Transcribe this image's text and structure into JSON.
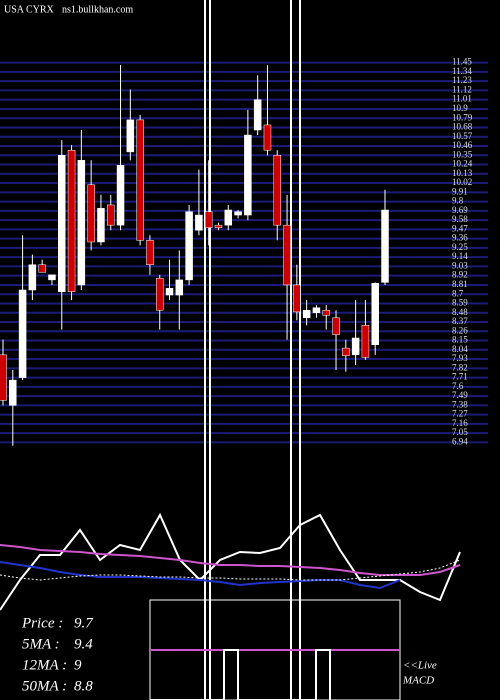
{
  "site": {
    "symbol": "USA CYRX",
    "source": "ns1.bullkhan.com"
  },
  "chart_data": [
    {
      "type": "candlestick",
      "open": [
        7.98,
        7.38,
        7.71,
        8.75,
        9.05,
        8.87,
        8.73,
        10.41,
        8.81,
        10.0,
        9.32,
        9.76,
        9.52,
        10.39,
        10.77,
        9.34,
        8.89,
        8.69,
        8.69,
        8.87,
        9.46,
        9.68,
        9.52,
        9.52,
        9.64,
        9.64,
        10.65,
        10.71,
        10.35,
        9.52,
        8.81,
        8.42,
        8.48,
        8.51,
        8.42,
        8.06,
        7.98,
        8.33,
        8.1,
        8.84
      ],
      "high": [
        8.16,
        7.8,
        9.4,
        9.17,
        9.11,
        8.93,
        10.53,
        10.47,
        10.65,
        10.29,
        9.88,
        9.88,
        11.42,
        11.13,
        10.83,
        9.4,
        8.93,
        9.11,
        9.22,
        9.76,
        10.18,
        10.29,
        9.55,
        9.76,
        9.7,
        10.89,
        11.3,
        11.42,
        10.41,
        9.88,
        9.05,
        8.63,
        8.57,
        8.57,
        8.51,
        8.16,
        8.63,
        8.63,
        8.84,
        9.94
      ],
      "low": [
        7.38,
        6.9,
        7.68,
        8.63,
        8.96,
        8.81,
        8.28,
        8.63,
        8.75,
        9.22,
        9.28,
        9.46,
        9.46,
        10.29,
        9.28,
        8.93,
        8.28,
        8.63,
        8.28,
        8.81,
        9.4,
        9.28,
        9.46,
        9.46,
        9.6,
        9.58,
        10.59,
        10.35,
        9.34,
        8.16,
        8.39,
        8.33,
        8.42,
        8.28,
        7.8,
        7.78,
        7.86,
        7.92,
        7.98,
        8.81
      ],
      "close": [
        7.44,
        7.68,
        8.75,
        9.05,
        8.96,
        8.93,
        10.35,
        8.73,
        10.29,
        9.32,
        9.72,
        9.52,
        10.23,
        10.77,
        9.34,
        9.05,
        8.51,
        8.77,
        8.87,
        9.68,
        9.64,
        9.49,
        9.49,
        9.7,
        9.68,
        10.59,
        11.01,
        10.41,
        9.52,
        8.81,
        8.49,
        8.51,
        8.54,
        8.45,
        8.22,
        7.97,
        8.18,
        7.95,
        8.83,
        9.7
      ],
      "colors": {
        "up": "#ffffff",
        "down": "#cc0000"
      },
      "ylim": [
        6.85,
        11.6
      ],
      "yticks": [
        11.45,
        11.34,
        11.23,
        11.12,
        11.01,
        10.9,
        10.79,
        10.68,
        10.57,
        10.46,
        10.35,
        10.24,
        10.13,
        10.02,
        9.91,
        9.8,
        9.69,
        9.58,
        9.47,
        9.36,
        9.25,
        9.14,
        9.03,
        8.92,
        8.81,
        8.7,
        8.59,
        8.48,
        8.37,
        8.26,
        8.15,
        8.04,
        7.93,
        7.82,
        7.71,
        7.6,
        7.49,
        7.38,
        7.27,
        7.16,
        7.05,
        6.94
      ],
      "grid": true,
      "grid_color": "#1c1c78"
    },
    {
      "type": "line",
      "x": [
        0,
        20,
        40,
        60,
        80,
        100,
        120,
        140,
        160,
        180,
        200,
        220,
        240,
        260,
        280,
        300,
        320,
        340,
        360,
        380,
        400,
        420,
        440,
        460
      ],
      "xlim": [
        0,
        500
      ],
      "ylim": [
        0,
        100
      ],
      "series": [
        {
          "color": "#ffffff",
          "style": "solid",
          "values": [
            0,
            30,
            55,
            55,
            80,
            50,
            65,
            60,
            95,
            50,
            30,
            50,
            58,
            57,
            62,
            85,
            95,
            60,
            30,
            30,
            30,
            18,
            10,
            58
          ]
        },
        {
          "color": "#cc55cc",
          "style": "solid",
          "values": [
            65,
            63,
            60,
            59,
            58,
            56,
            55,
            54,
            52,
            50,
            47,
            45,
            45,
            44,
            44,
            43,
            42,
            40,
            37,
            35,
            35,
            35,
            38,
            45
          ]
        },
        {
          "color": "#2233cc",
          "style": "solid",
          "values": [
            48,
            45,
            42,
            38,
            35,
            33,
            33,
            33,
            32,
            31,
            30,
            28,
            25,
            27,
            28,
            29,
            30,
            30,
            25,
            22,
            30,
            null,
            null,
            null
          ]
        },
        {
          "color": "#ffffff",
          "style": "dashed",
          "values": [
            35,
            32,
            30,
            32,
            34,
            35,
            35,
            34,
            33,
            33,
            32,
            32,
            31,
            31,
            31,
            30,
            30,
            30,
            32,
            34,
            36,
            38,
            42,
            50
          ]
        }
      ]
    }
  ],
  "indicators": [
    {
      "label": "Price  :",
      "value": 9.7
    },
    {
      "label": "5MA :",
      "value": 9.4
    },
    {
      "label": "12MA :",
      "value": 9
    },
    {
      "label": "50MA :",
      "value": 8.8
    }
  ],
  "live": {
    "label": "<<Live",
    "name": "MACD"
  }
}
